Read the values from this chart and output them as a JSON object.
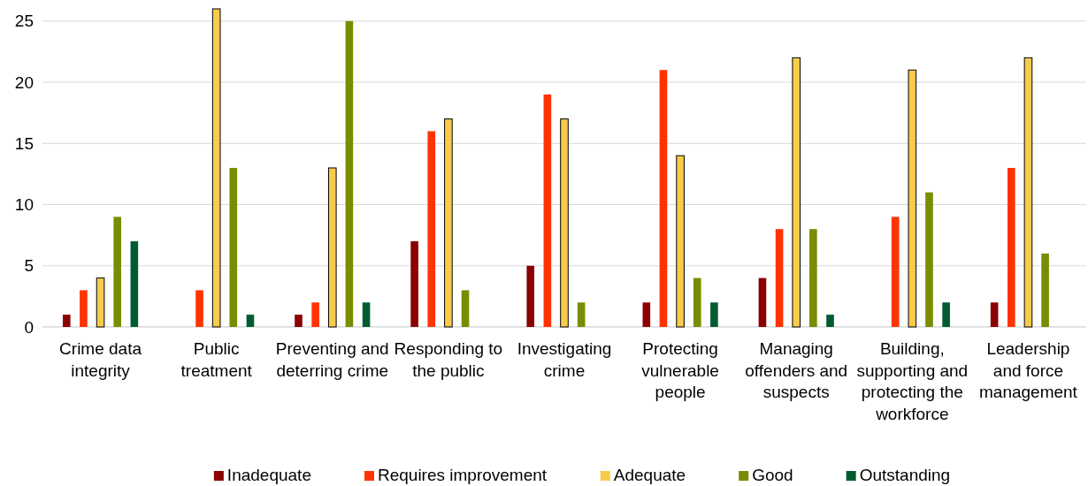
{
  "chart_data": {
    "type": "bar",
    "categories": [
      "Crime data integrity",
      "Public treatment",
      "Preventing and deterring crime",
      "Responding to the public",
      "Investigating crime",
      "Protecting vulnerable people",
      "Managing offenders and suspects",
      "Building, supporting and protecting the workforce",
      "Leadership and force management"
    ],
    "series": [
      {
        "name": "Inadequate",
        "color": "#8b0000",
        "values": [
          1,
          null,
          1,
          7,
          5,
          2,
          4,
          null,
          2
        ]
      },
      {
        "name": "Requires improvement",
        "color": "#ff3300",
        "values": [
          3,
          3,
          2,
          16,
          19,
          21,
          8,
          9,
          13
        ]
      },
      {
        "name": "Adequate",
        "color": "#f8cb4c",
        "values": [
          4,
          26,
          13,
          17,
          17,
          14,
          22,
          21,
          22
        ]
      },
      {
        "name": "Good",
        "color": "#7a8c00",
        "values": [
          9,
          13,
          25,
          3,
          2,
          4,
          8,
          11,
          6
        ]
      },
      {
        "name": "Outstanding",
        "color": "#005c30",
        "values": [
          7,
          1,
          2,
          null,
          null,
          2,
          1,
          2,
          null
        ]
      }
    ],
    "ylim": [
      0,
      26
    ],
    "yticks": [
      0,
      5,
      10,
      15,
      20,
      25
    ],
    "grid": "y",
    "legend": "bottom"
  }
}
